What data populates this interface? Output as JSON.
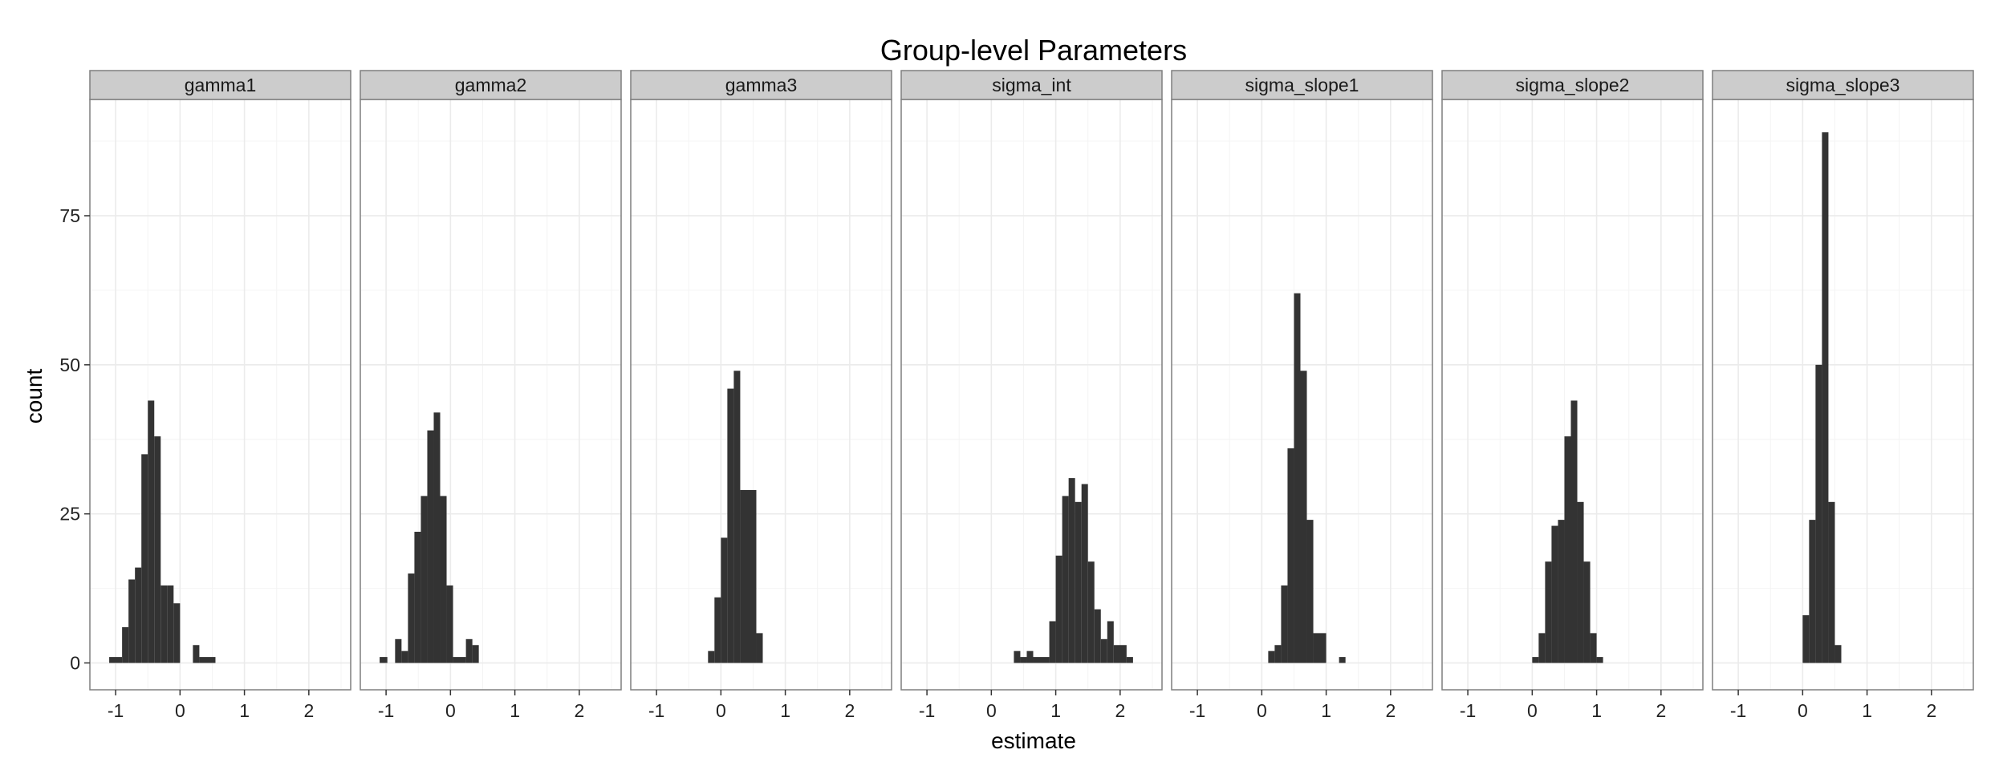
{
  "chart_data": {
    "type": "bar",
    "title": "Group-level Parameters",
    "xlabel": "estimate",
    "ylabel": "count",
    "xlim": [
      -1.4,
      2.65
    ],
    "ylim": [
      -4.5,
      94.5
    ],
    "x_ticks": [
      "-1",
      "0",
      "1",
      "2"
    ],
    "x_tick_values": [
      -1,
      0,
      1,
      2
    ],
    "y_ticks": [
      "0",
      "25",
      "50",
      "75"
    ],
    "y_tick_values": [
      0,
      25,
      50,
      75
    ],
    "grid": true,
    "bar_color": "#333333",
    "panel_background": "#ffffff",
    "grid_color": "#ebebeb",
    "strip_background": "#cccccc",
    "panels": [
      {
        "name": "gamma1",
        "bars": [
          {
            "x0": -1.1,
            "x1": -0.9,
            "count": 1
          },
          {
            "x0": -0.9,
            "x1": -0.8,
            "count": 6
          },
          {
            "x0": -0.8,
            "x1": -0.7,
            "count": 14
          },
          {
            "x0": -0.7,
            "x1": -0.6,
            "count": 16
          },
          {
            "x0": -0.6,
            "x1": -0.5,
            "count": 35
          },
          {
            "x0": -0.5,
            "x1": -0.4,
            "count": 44
          },
          {
            "x0": -0.4,
            "x1": -0.3,
            "count": 38
          },
          {
            "x0": -0.3,
            "x1": -0.2,
            "count": 13
          },
          {
            "x0": -0.2,
            "x1": -0.1,
            "count": 13
          },
          {
            "x0": -0.1,
            "x1": 0.0,
            "count": 10
          },
          {
            "x0": 0.2,
            "x1": 0.3,
            "count": 3
          },
          {
            "x0": 0.3,
            "x1": 0.55,
            "count": 1
          }
        ]
      },
      {
        "name": "gamma2",
        "bars": [
          {
            "x0": -1.1,
            "x1": -0.98,
            "count": 1
          },
          {
            "x0": -0.86,
            "x1": -0.76,
            "count": 4
          },
          {
            "x0": -0.76,
            "x1": -0.66,
            "count": 2
          },
          {
            "x0": -0.66,
            "x1": -0.56,
            "count": 15
          },
          {
            "x0": -0.56,
            "x1": -0.46,
            "count": 22
          },
          {
            "x0": -0.46,
            "x1": -0.36,
            "count": 28
          },
          {
            "x0": -0.36,
            "x1": -0.26,
            "count": 39
          },
          {
            "x0": -0.26,
            "x1": -0.16,
            "count": 42
          },
          {
            "x0": -0.16,
            "x1": -0.06,
            "count": 28
          },
          {
            "x0": -0.06,
            "x1": 0.04,
            "count": 13
          },
          {
            "x0": 0.04,
            "x1": 0.24,
            "count": 1
          },
          {
            "x0": 0.24,
            "x1": 0.34,
            "count": 4
          },
          {
            "x0": 0.34,
            "x1": 0.44,
            "count": 3
          }
        ]
      },
      {
        "name": "gamma3",
        "bars": [
          {
            "x0": -0.2,
            "x1": -0.1,
            "count": 2
          },
          {
            "x0": -0.1,
            "x1": 0.0,
            "count": 11
          },
          {
            "x0": 0.0,
            "x1": 0.1,
            "count": 21
          },
          {
            "x0": 0.1,
            "x1": 0.2,
            "count": 46
          },
          {
            "x0": 0.2,
            "x1": 0.3,
            "count": 49
          },
          {
            "x0": 0.3,
            "x1": 0.55,
            "count": 29
          },
          {
            "x0": 0.55,
            "x1": 0.65,
            "count": 5
          }
        ]
      },
      {
        "name": "sigma_int",
        "bars": [
          {
            "x0": 0.35,
            "x1": 0.45,
            "count": 2
          },
          {
            "x0": 0.45,
            "x1": 0.55,
            "count": 1
          },
          {
            "x0": 0.55,
            "x1": 0.65,
            "count": 2
          },
          {
            "x0": 0.65,
            "x1": 0.9,
            "count": 1
          },
          {
            "x0": 0.9,
            "x1": 1.0,
            "count": 7
          },
          {
            "x0": 1.0,
            "x1": 1.1,
            "count": 18
          },
          {
            "x0": 1.1,
            "x1": 1.2,
            "count": 28
          },
          {
            "x0": 1.2,
            "x1": 1.3,
            "count": 31
          },
          {
            "x0": 1.3,
            "x1": 1.4,
            "count": 27
          },
          {
            "x0": 1.4,
            "x1": 1.5,
            "count": 30
          },
          {
            "x0": 1.5,
            "x1": 1.6,
            "count": 17
          },
          {
            "x0": 1.6,
            "x1": 1.7,
            "count": 9
          },
          {
            "x0": 1.7,
            "x1": 1.8,
            "count": 4
          },
          {
            "x0": 1.8,
            "x1": 1.9,
            "count": 7
          },
          {
            "x0": 1.9,
            "x1": 2.1,
            "count": 3
          },
          {
            "x0": 2.1,
            "x1": 2.2,
            "count": 1
          }
        ]
      },
      {
        "name": "sigma_slope1",
        "bars": [
          {
            "x0": 0.1,
            "x1": 0.2,
            "count": 2
          },
          {
            "x0": 0.2,
            "x1": 0.3,
            "count": 3
          },
          {
            "x0": 0.3,
            "x1": 0.4,
            "count": 13
          },
          {
            "x0": 0.4,
            "x1": 0.5,
            "count": 36
          },
          {
            "x0": 0.5,
            "x1": 0.6,
            "count": 62
          },
          {
            "x0": 0.6,
            "x1": 0.7,
            "count": 49
          },
          {
            "x0": 0.7,
            "x1": 0.8,
            "count": 24
          },
          {
            "x0": 0.8,
            "x1": 1.0,
            "count": 5
          },
          {
            "x0": 1.2,
            "x1": 1.3,
            "count": 1
          }
        ]
      },
      {
        "name": "sigma_slope2",
        "bars": [
          {
            "x0": 0.0,
            "x1": 0.1,
            "count": 1
          },
          {
            "x0": 0.1,
            "x1": 0.2,
            "count": 5
          },
          {
            "x0": 0.2,
            "x1": 0.3,
            "count": 17
          },
          {
            "x0": 0.3,
            "x1": 0.4,
            "count": 23
          },
          {
            "x0": 0.4,
            "x1": 0.5,
            "count": 24
          },
          {
            "x0": 0.5,
            "x1": 0.6,
            "count": 38
          },
          {
            "x0": 0.6,
            "x1": 0.7,
            "count": 44
          },
          {
            "x0": 0.7,
            "x1": 0.8,
            "count": 27
          },
          {
            "x0": 0.8,
            "x1": 0.9,
            "count": 17
          },
          {
            "x0": 0.9,
            "x1": 1.0,
            "count": 5
          },
          {
            "x0": 1.0,
            "x1": 1.1,
            "count": 1
          }
        ]
      },
      {
        "name": "sigma_slope3",
        "bars": [
          {
            "x0": 0.0,
            "x1": 0.1,
            "count": 8
          },
          {
            "x0": 0.1,
            "x1": 0.2,
            "count": 24
          },
          {
            "x0": 0.2,
            "x1": 0.3,
            "count": 50
          },
          {
            "x0": 0.3,
            "x1": 0.4,
            "count": 89
          },
          {
            "x0": 0.4,
            "x1": 0.5,
            "count": 27
          },
          {
            "x0": 0.5,
            "x1": 0.6,
            "count": 3
          }
        ]
      }
    ]
  }
}
